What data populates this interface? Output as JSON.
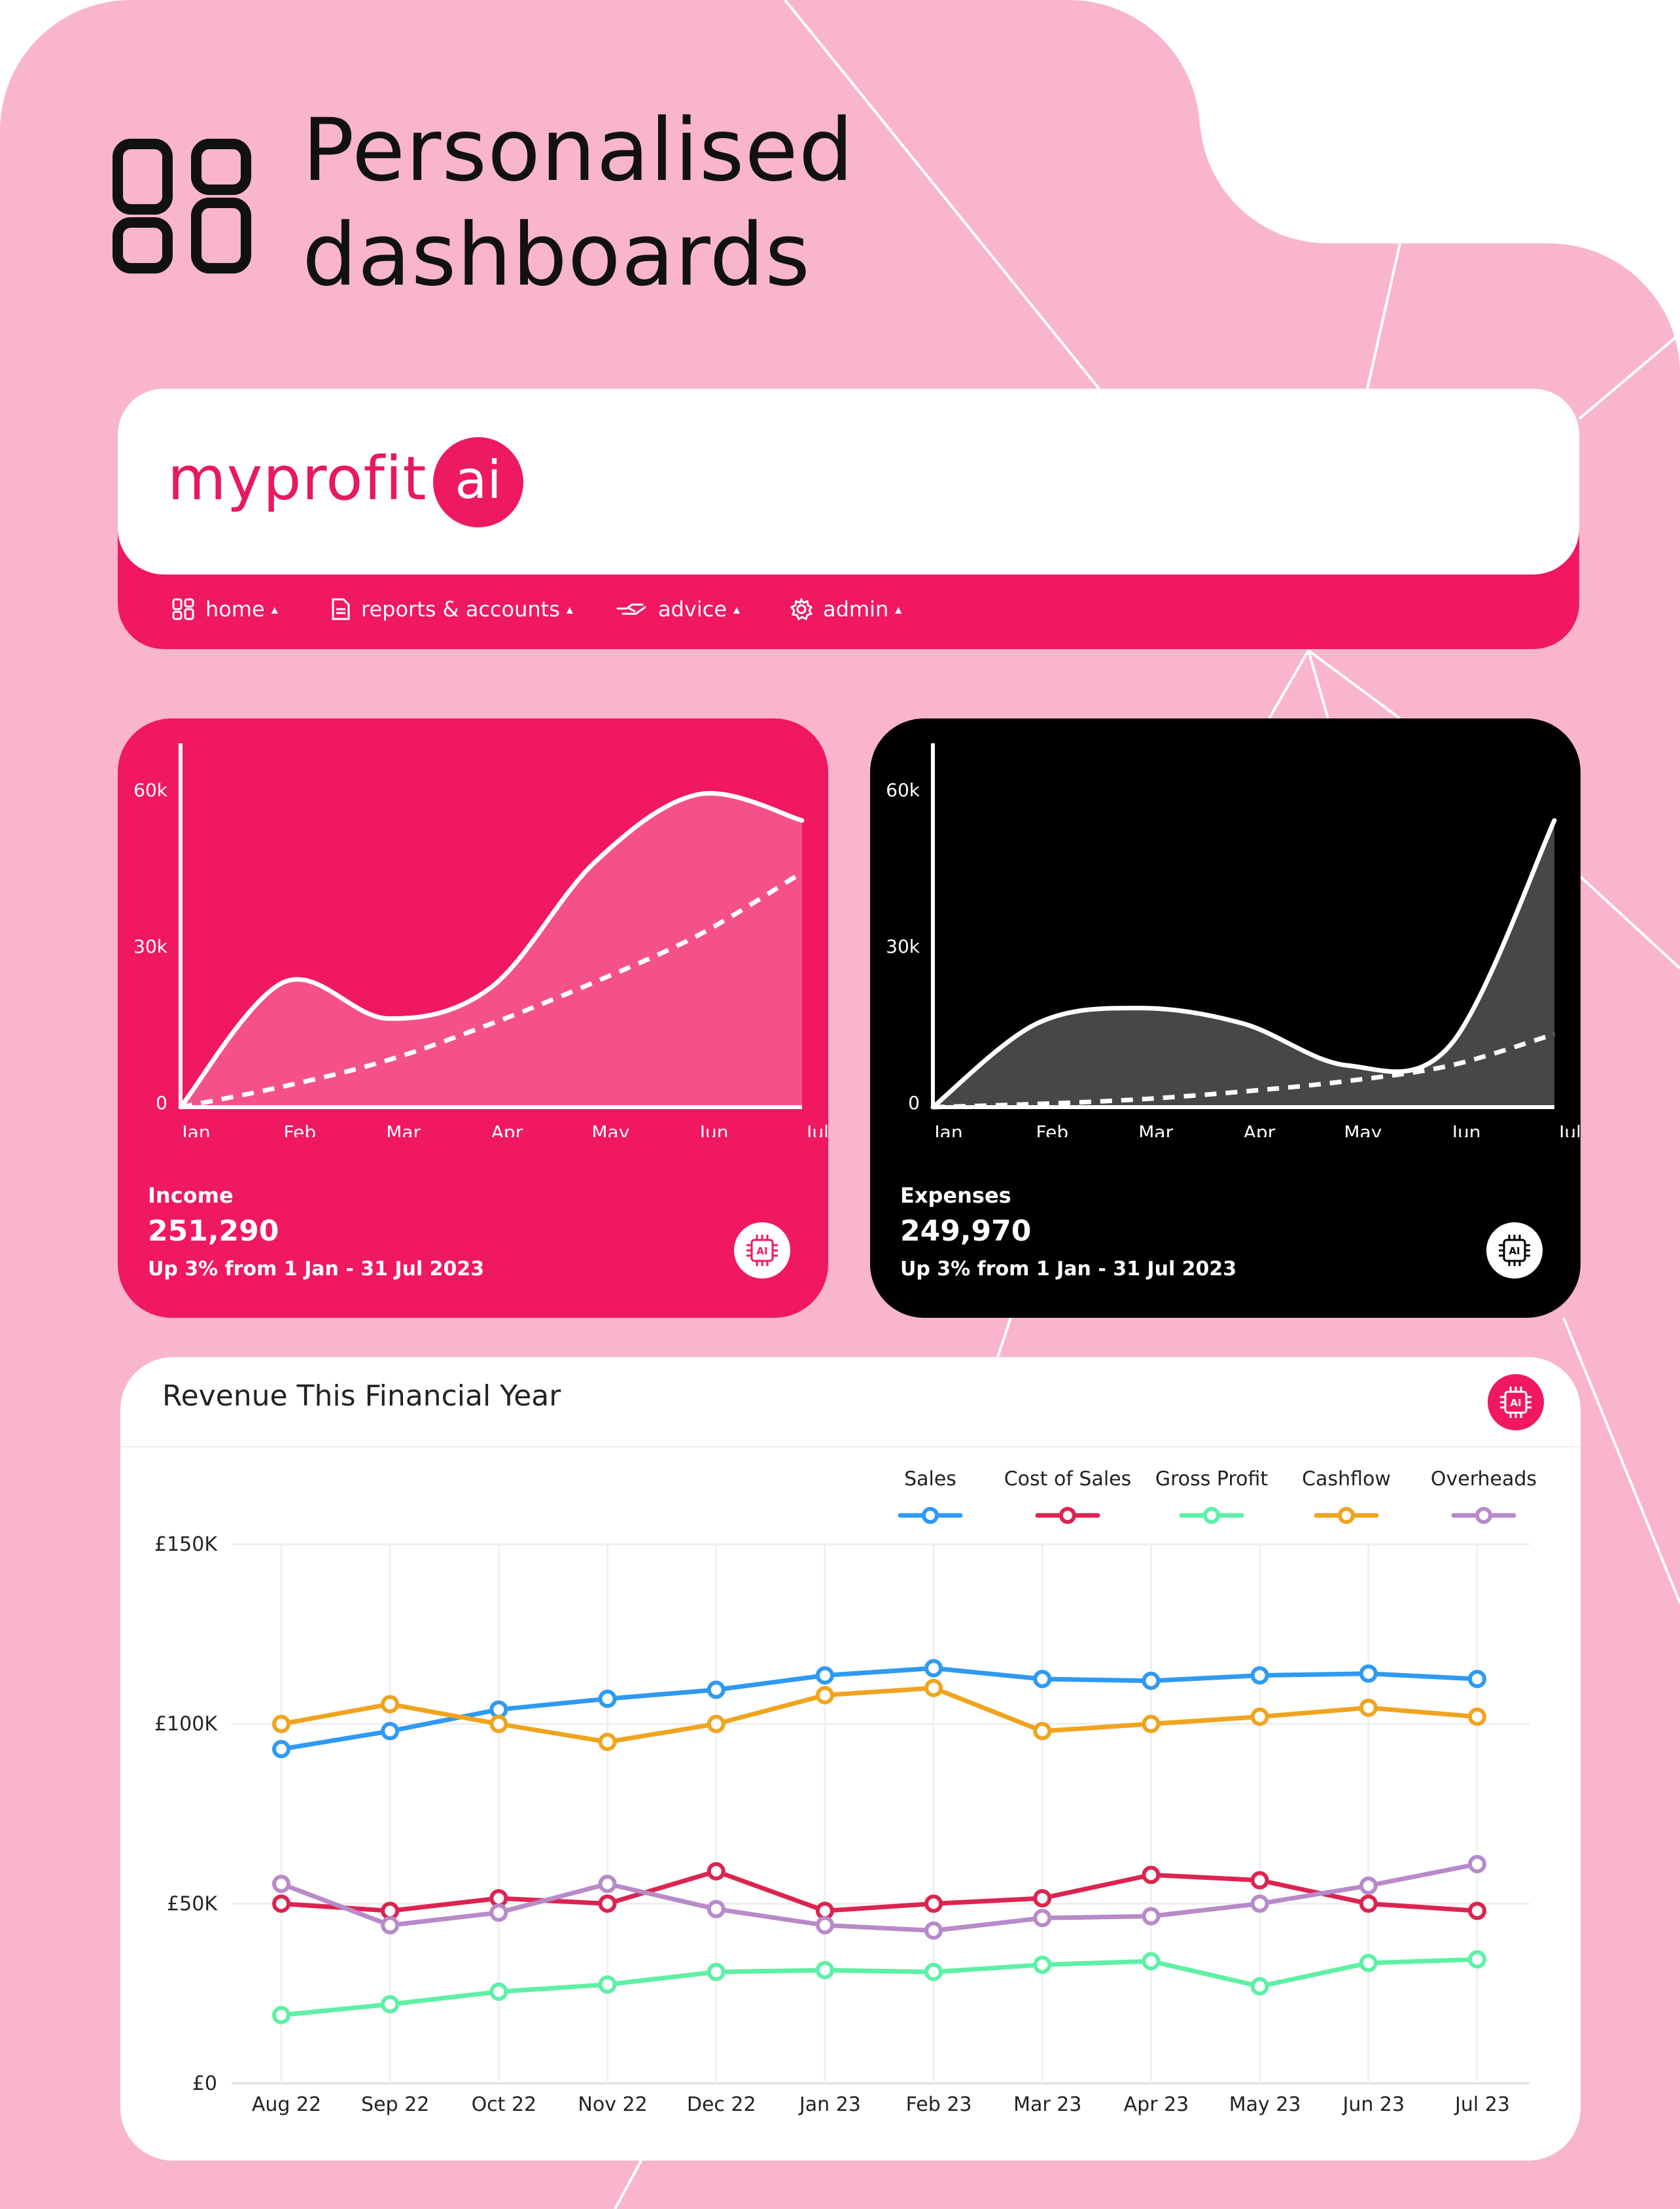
{
  "heading": {
    "line1": "Personalised",
    "line2": "dashboards"
  },
  "app": {
    "logo_text": "myprofit",
    "logo_badge": "ai",
    "brand_color": "#f0185f",
    "background_color": "#f9b5ca",
    "nav": [
      {
        "label": "home",
        "icon": "grid-icon"
      },
      {
        "label": "reports & accounts",
        "icon": "document-icon"
      },
      {
        "label": "advice",
        "icon": "handshake-icon"
      },
      {
        "label": "admin",
        "icon": "gear-icon"
      }
    ],
    "nav_caret": "▴"
  },
  "income_card": {
    "title": "Income",
    "value": "251,290",
    "subtitle": "Up 3% from 1 Jan - 31 Jul 2023",
    "badge": "AI",
    "color": "#f0185f"
  },
  "expenses_card": {
    "title": "Expenses",
    "value": "249,970",
    "subtitle": "Up 3% from 1 Jan - 31 Jul 2023",
    "badge": "AI",
    "color": "#000000"
  },
  "revenue": {
    "title": "Revenue This Financial Year",
    "badge": "AI"
  },
  "chart_data": [
    {
      "type": "area",
      "name": "income",
      "categories": [
        "Jan",
        "Feb",
        "Mar",
        "Apr",
        "May",
        "Jun",
        "Jul"
      ],
      "y_ticks": [
        "60k",
        "30k",
        "0"
      ],
      "ylim": [
        0,
        60000
      ],
      "series": [
        {
          "name": "Income",
          "style": "solid-area",
          "values": [
            0,
            24000,
            17000,
            23000,
            47000,
            60000,
            55000
          ]
        },
        {
          "name": "Trend",
          "style": "dashed",
          "values": [
            0,
            4000,
            9000,
            16000,
            24000,
            33000,
            45000
          ]
        }
      ]
    },
    {
      "type": "area",
      "name": "expenses",
      "categories": [
        "Jan",
        "Feb",
        "Mar",
        "Apr",
        "May",
        "Jun",
        "Jul"
      ],
      "y_ticks": [
        "60k",
        "30k",
        "0"
      ],
      "ylim": [
        0,
        60000
      ],
      "series": [
        {
          "name": "Expenses",
          "style": "solid-area",
          "values": [
            0,
            16000,
            19000,
            16000,
            8000,
            12000,
            55000
          ]
        },
        {
          "name": "Trend",
          "style": "dashed",
          "values": [
            0,
            600,
            1500,
            3000,
            5000,
            8000,
            14000
          ]
        }
      ]
    },
    {
      "type": "line",
      "name": "revenue",
      "title": "Revenue This Financial Year",
      "categories": [
        "Aug 22",
        "Sep 22",
        "Oct 22",
        "Nov 22",
        "Dec 22",
        "Jan 23",
        "Feb 23",
        "Mar 23",
        "Apr 23",
        "May 23",
        "Jun 23",
        "Jul 23"
      ],
      "y_ticks": [
        "£150K",
        "£100K",
        "£50K",
        "£0"
      ],
      "ylim": [
        0,
        150000
      ],
      "grid": true,
      "legend": "top-right",
      "series": [
        {
          "name": "Sales",
          "color": "#2e9af2",
          "values": [
            93000,
            98000,
            104000,
            107000,
            109500,
            113500,
            115500,
            112500,
            112000,
            113500,
            114000,
            112500
          ]
        },
        {
          "name": "Cost of Sales",
          "color": "#dc2450",
          "values": [
            50000,
            48000,
            51500,
            50000,
            59000,
            48000,
            50000,
            51500,
            58000,
            56500,
            50000,
            48000
          ]
        },
        {
          "name": "Gross Profit",
          "color": "#5ef0a6",
          "values": [
            19000,
            22000,
            25500,
            27500,
            31000,
            31500,
            31000,
            33000,
            34000,
            27000,
            33500,
            34500
          ]
        },
        {
          "name": "Cashflow",
          "color": "#f0a41e",
          "values": [
            100000,
            105500,
            100000,
            95000,
            100000,
            108000,
            110000,
            98000,
            100000,
            102000,
            104500,
            102000
          ]
        },
        {
          "name": "Overheads",
          "color": "#b88ac9",
          "values": [
            55500,
            44000,
            47500,
            55500,
            48500,
            44000,
            42500,
            46000,
            46500,
            50000,
            55000,
            61000
          ]
        }
      ]
    }
  ]
}
